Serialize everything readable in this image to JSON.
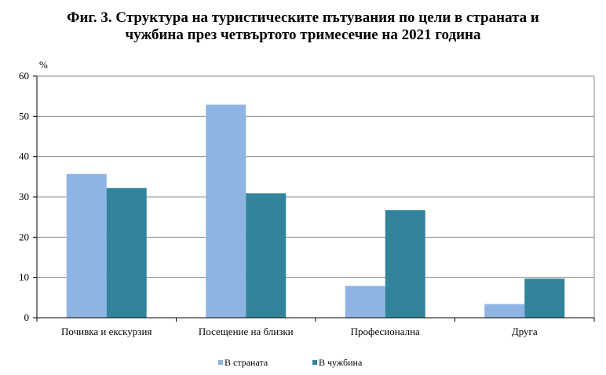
{
  "chart_data": {
    "type": "bar",
    "title_lines": [
      "Фиг. 3. Структура на туристическите пътувания по цели в страната и",
      "чужбина през четвъртото тримесечие на 2021 година"
    ],
    "ylabel": "%",
    "xlabel": "",
    "ylim": [
      0,
      60
    ],
    "yticks": [
      0,
      10,
      20,
      30,
      40,
      50,
      60
    ],
    "grid": true,
    "legend_position": "bottom",
    "categories": [
      "Почивка и  екскурзия",
      "Посещение на близки",
      "Професионална",
      "Друга"
    ],
    "series": [
      {
        "name": "В страната",
        "color": "#8db4e2",
        "values": [
          35.7,
          52.9,
          7.9,
          3.4
        ]
      },
      {
        "name": "В чужбина",
        "color": "#31849b",
        "values": [
          32.2,
          30.9,
          26.7,
          9.7
        ]
      }
    ]
  }
}
